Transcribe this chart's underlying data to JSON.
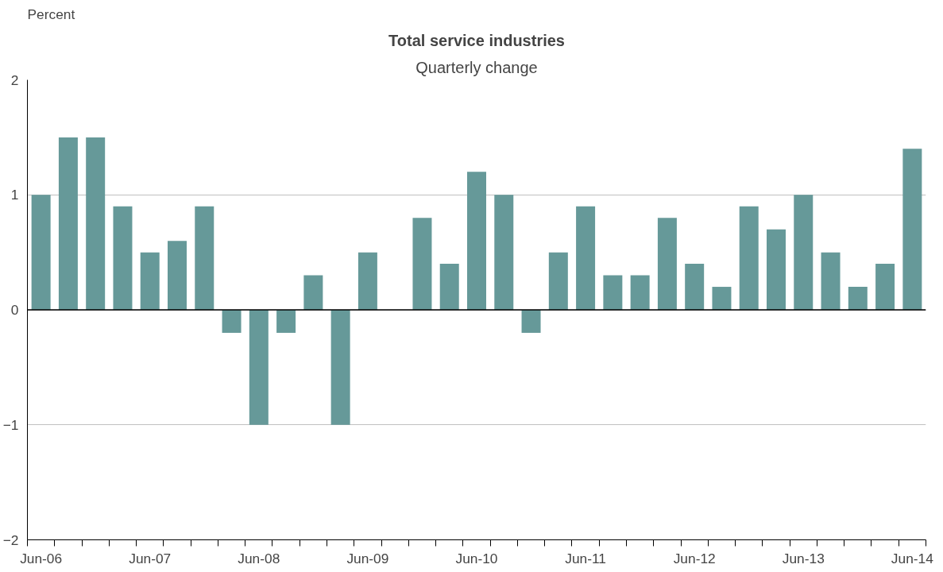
{
  "chart_data": {
    "type": "bar",
    "title": "Total service industries",
    "subtitle": "Quarterly change",
    "ylabel": "Percent",
    "categories": [
      "Jun-06",
      null,
      null,
      null,
      "Jun-07",
      null,
      null,
      null,
      "Jun-08",
      null,
      null,
      null,
      "Jun-09",
      null,
      null,
      null,
      "Jun-10",
      null,
      null,
      null,
      "Jun-11",
      null,
      null,
      null,
      "Jun-12",
      null,
      null,
      null,
      "Jun-13",
      null,
      null,
      null,
      "Jun-14"
    ],
    "values": [
      1.0,
      1.5,
      1.5,
      0.9,
      0.5,
      0.6,
      0.9,
      -0.2,
      -1.0,
      -0.2,
      0.3,
      -1.0,
      0.5,
      0.0,
      0.8,
      0.4,
      1.2,
      1.0,
      -0.2,
      0.5,
      0.9,
      0.3,
      0.3,
      0.8,
      0.4,
      0.2,
      0.9,
      0.7,
      1.0,
      0.5,
      0.2,
      0.4,
      1.4
    ],
    "color": "#669999",
    "ylim": [
      -2,
      2
    ],
    "yticks": [
      -2,
      -1,
      0,
      1,
      2
    ],
    "grid": "y"
  }
}
